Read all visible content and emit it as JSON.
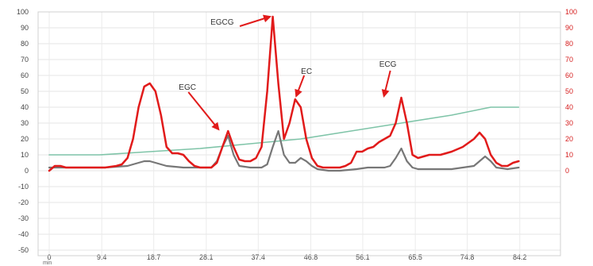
{
  "chart_data": {
    "type": "line",
    "xlabel": "min",
    "x_ticks": [
      "0",
      "9.4",
      "18.7",
      "28.1",
      "37.4",
      "46.8",
      "56.1",
      "65.5",
      "74.8",
      "84.2"
    ],
    "xlim": [
      0,
      86
    ],
    "ylim_left": [
      -50,
      100
    ],
    "ylim_right": [
      -50,
      100
    ],
    "y_ticks_left": [
      100,
      90,
      80,
      70,
      60,
      50,
      40,
      30,
      20,
      10,
      0,
      -10,
      -20,
      -30,
      -40,
      -50
    ],
    "y_ticks_right": [
      100,
      90,
      80,
      70,
      60,
      50,
      40,
      30,
      20,
      10,
      0
    ],
    "grid": true,
    "colors": {
      "red_trace": "#e11b1b",
      "gray_trace": "#777777",
      "gradient_trace": "#7fc4a8",
      "right_axis": "#d62020"
    },
    "series": [
      {
        "color": "#e11b1b",
        "axis": "right",
        "x": [
          0,
          1,
          2,
          3,
          5,
          8,
          10,
          12,
          13,
          14,
          15,
          16,
          17,
          18,
          19,
          20,
          21,
          22,
          23,
          24,
          25,
          26,
          27,
          28,
          29,
          30,
          31,
          32,
          33,
          34,
          35,
          36,
          37,
          38,
          39,
          40,
          41,
          42,
          43,
          44,
          45,
          46,
          47,
          48,
          49,
          50,
          51,
          52,
          53,
          54,
          55,
          56,
          57,
          58,
          59,
          60,
          61,
          62,
          63,
          64,
          65,
          66,
          67,
          68,
          70,
          72,
          74,
          76,
          77,
          78,
          79,
          80,
          81,
          82,
          83,
          84
        ],
        "values": [
          0,
          3,
          3,
          2,
          2,
          2,
          2,
          3,
          4,
          8,
          20,
          40,
          53,
          55,
          50,
          35,
          15,
          11,
          11,
          10,
          6,
          3,
          2,
          2,
          2,
          5,
          15,
          25,
          15,
          7,
          6,
          6,
          8,
          15,
          50,
          97,
          55,
          20,
          30,
          45,
          40,
          20,
          8,
          3,
          2,
          2,
          2,
          2,
          3,
          5,
          12,
          12,
          14,
          15,
          18,
          20,
          22,
          30,
          46,
          30,
          10,
          8,
          9,
          10,
          10,
          12,
          15,
          20,
          24,
          20,
          10,
          5,
          3,
          3,
          5,
          6
        ]
      },
      {
        "color": "#777777",
        "axis": "left",
        "x": [
          0,
          5,
          10,
          14,
          16,
          17,
          18,
          19,
          21,
          24,
          27,
          29,
          30,
          31,
          32,
          33,
          34,
          36,
          38,
          39,
          40,
          41,
          42,
          43,
          44,
          45,
          46,
          47,
          48,
          50,
          52,
          55,
          57,
          60,
          61,
          62,
          63,
          64,
          65,
          66,
          67,
          70,
          72,
          74,
          76,
          77,
          78,
          79,
          80,
          82,
          84
        ],
        "values": [
          2,
          2,
          2,
          3,
          5,
          6,
          6,
          5,
          3,
          2,
          2,
          2,
          6,
          15,
          22,
          10,
          3,
          2,
          2,
          4,
          15,
          25,
          10,
          5,
          5,
          8,
          6,
          3,
          1,
          0,
          0,
          1,
          2,
          2,
          3,
          8,
          14,
          6,
          2,
          1,
          1,
          1,
          1,
          2,
          3,
          6,
          9,
          6,
          2,
          1,
          2
        ]
      },
      {
        "color": "#7fc4a8",
        "axis": "left",
        "x": [
          0,
          9,
          18,
          27,
          36,
          45,
          54,
          63,
          72,
          79,
          84
        ],
        "values": [
          10,
          10,
          12,
          14,
          17,
          20,
          25,
          30,
          35,
          40,
          40
        ]
      }
    ],
    "annotations": [
      {
        "text": "EGC",
        "x": 30.3,
        "y": 26
      },
      {
        "text": "EGCG",
        "x": 39.5,
        "y": 97
      },
      {
        "text": "EC",
        "x": 44.2,
        "y": 47
      },
      {
        "text": "ECG",
        "x": 59.9,
        "y": 47
      }
    ]
  }
}
